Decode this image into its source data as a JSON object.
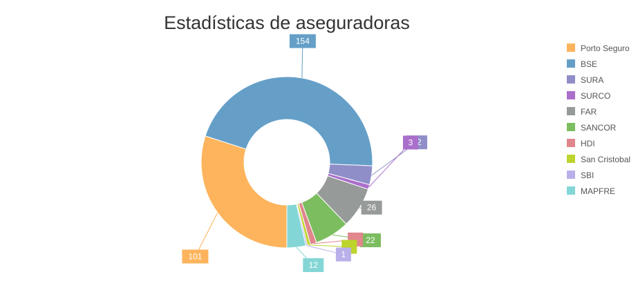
{
  "chart_data": {
    "type": "pie",
    "donut": true,
    "title": "Estadísticas de aseguradoras",
    "legend_position": "right",
    "categories": [
      "Porto Seguro",
      "BSE",
      "SURA",
      "SURCO",
      "FAR",
      "SANCOR",
      "HDI",
      "San Cristobal",
      "SBI",
      "MAPFRE"
    ],
    "values": [
      101,
      154,
      12,
      3,
      26,
      22,
      4,
      2,
      1,
      12
    ],
    "data_labels": [
      "101",
      "154",
      "12",
      "3",
      "26",
      "22",
      "",
      "",
      "1",
      "12"
    ],
    "colors": [
      "#FDB45C",
      "#659FC8",
      "#8F8EC8",
      "#AA6FCB",
      "#969A98",
      "#7CBD60",
      "#E0868C",
      "#BDD42D",
      "#B9B0EA",
      "#84D6D6"
    ]
  }
}
